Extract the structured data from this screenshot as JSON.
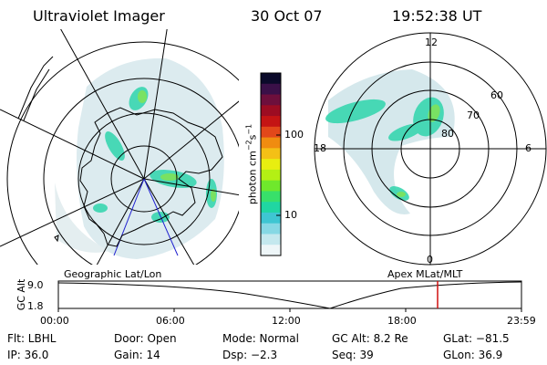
{
  "header": {
    "instrument": "Ultraviolet Imager",
    "date": "30 Oct 07",
    "time": "19:52:38 UT"
  },
  "left_panel": {
    "caption": "Geographic Lat/Lon"
  },
  "right_panel": {
    "caption": "Apex MLat/MLT",
    "mlt_labels": {
      "top": "12",
      "left": "18",
      "right": "6",
      "bottom": "0"
    },
    "lat_labels": [
      "60",
      "70",
      "80"
    ]
  },
  "colorbar": {
    "unit_label": "photon cm",
    "unit_exp1": "−2",
    "unit_mid": "s",
    "unit_exp2": "−1",
    "ticks": [
      "100",
      "10"
    ],
    "colors": [
      "#0b0a2a",
      "#3a1048",
      "#6d0f3c",
      "#9c0c22",
      "#c41414",
      "#e2481a",
      "#f08c10",
      "#f4c016",
      "#e8ee10",
      "#b4f014",
      "#6fe82c",
      "#38e06a",
      "#20d6a2",
      "#3ec6d2",
      "#86d8e4",
      "#c4e8ee",
      "#eef6f8"
    ]
  },
  "timeline": {
    "axis_title": "GC Alt",
    "y_top": "9.0",
    "y_bottom": "1.8",
    "time_ticks": [
      "00:00",
      "06:00",
      "12:00",
      "18:00",
      "23:59"
    ],
    "marker_color": "#d01010"
  },
  "footer": {
    "filter": "Flt: LBHL",
    "ip": "IP: 36.0",
    "door": "Door: Open",
    "gain": "Gain: 14",
    "mode": "Mode: Normal",
    "dsp": "Dsp:    −2.3",
    "gc_alt": "GC Alt: 8.2 Re",
    "seq": "Seq: 39",
    "glat": "GLat: −81.5",
    "glon": "GLon:  36.9"
  }
}
